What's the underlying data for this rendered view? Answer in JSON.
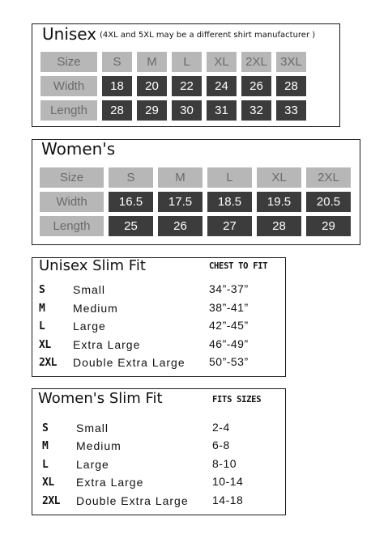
{
  "unisex": {
    "title": "Unisex",
    "note": "(4XL and 5XL may be a different shirt manufacturer )",
    "row_labels": [
      "Size",
      "Width",
      "Length"
    ],
    "sizes": [
      "S",
      "M",
      "L",
      "XL",
      "2XL",
      "3XL"
    ],
    "width": [
      "18",
      "20",
      "22",
      "24",
      "26",
      "28"
    ],
    "length": [
      "28",
      "29",
      "30",
      "31",
      "32",
      "33"
    ]
  },
  "womens": {
    "title": "Women's",
    "row_labels": [
      "Size",
      "Width",
      "Length"
    ],
    "sizes": [
      "S",
      "M",
      "L",
      "XL",
      "2XL"
    ],
    "width": [
      "16.5",
      "17.5",
      "18.5",
      "19.5",
      "20.5"
    ],
    "length": [
      "25",
      "26",
      "27",
      "28",
      "29"
    ]
  },
  "unisex_slim": {
    "title": "Unisex Slim Fit",
    "column_header": "CHEST TO FIT",
    "rows": [
      {
        "size": "S",
        "name": "Small",
        "measure": "34”-37”"
      },
      {
        "size": "M",
        "name": "Medium",
        "measure": "38”-41”"
      },
      {
        "size": "L",
        "name": "Large",
        "measure": "42”-45”"
      },
      {
        "size": "XL",
        "name": "Extra Large",
        "measure": "46”-49”"
      },
      {
        "size": "2XL",
        "name": "Double Extra Large",
        "measure": "50”-53”"
      }
    ]
  },
  "womens_slim": {
    "title": "Women's Slim Fit",
    "column_header": "FITS SIZES",
    "rows": [
      {
        "size": "S",
        "name": "Small",
        "measure": "2-4"
      },
      {
        "size": "M",
        "name": "Medium",
        "measure": "6-8"
      },
      {
        "size": "L",
        "name": "Large",
        "measure": "8-10"
      },
      {
        "size": "XL",
        "name": "Extra Large",
        "measure": "10-14"
      },
      {
        "size": "2XL",
        "name": "Double Extra Large",
        "measure": "14-18"
      }
    ]
  },
  "colors": {
    "label_gray": "#b7b7b7",
    "label_text": "#6a6a6a",
    "value_dark": "#3c3c3c",
    "border": "#1a1a1a"
  }
}
